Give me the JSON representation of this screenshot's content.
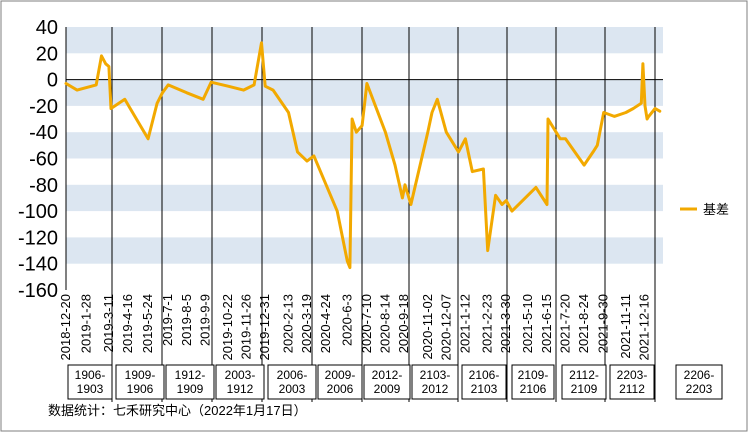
{
  "chart_data": {
    "type": "line",
    "title": "",
    "xlabel": "",
    "ylabel": "",
    "ylim": [
      -160,
      40
    ],
    "yticks": [
      40,
      20,
      0,
      -20,
      -40,
      -60,
      -80,
      -100,
      -120,
      -140,
      -160
    ],
    "y_unit": "",
    "grid": "alternating horizontal bands",
    "legend_placement": "right",
    "colors": {
      "series": "#F2A900",
      "band": "#DCE6F1",
      "frame": "#000000"
    },
    "x_ticks": [
      "2018-12-20",
      "2019-1-28",
      "2019-3-11",
      "2019-4-16",
      "2019-5-24",
      "2019-7-1",
      "2019-8-5",
      "2019-9-9",
      "2019-10-22",
      "2019-11-26",
      "2019-12-31",
      "2020-2-13",
      "2020-3-19",
      "2020-4-24",
      "2020-6-3",
      "2020-7-10",
      "2020-8-14",
      "2020-9-18",
      "2020-11-02",
      "2020-12-07",
      "2021-1-12",
      "2021-2-23",
      "2021-3-30",
      "2021-5-10",
      "2021-6-15",
      "2021-7-20",
      "2021-8-24",
      "2021-9-30",
      "2021-11-11",
      "2021-12-16"
    ],
    "contract_labels": [
      "1906-\n1903",
      "1909-\n1906",
      "1912-\n1909",
      "2003-\n1912",
      "2006-\n2003",
      "2009-\n2006",
      "2012-\n2009",
      "2103-\n2012",
      "2106-\n2103",
      "2109-\n2106",
      "2112-\n2109",
      "2203-\n2112",
      "2206-\n2203"
    ],
    "series": [
      {
        "name": "基差",
        "x": [
          "2018-12-20",
          "2019-1-10",
          "2019-2-15",
          "2019-2-25",
          "2019-3-05",
          "2019-3-11",
          "2019-3-15",
          "2019-4-10",
          "2019-5-24",
          "2019-6-10",
          "2019-6-20",
          "2019-7-01",
          "2019-8-05",
          "2019-9-05",
          "2019-9-20",
          "2019-10-22",
          "2019-11-20",
          "2019-12-10",
          "2019-12-24",
          "2019-12-31",
          "2020-1-15",
          "2020-2-13",
          "2020-3-01",
          "2020-3-19",
          "2020-4-01",
          "2020-4-24",
          "2020-5-15",
          "2020-6-03",
          "2020-6-08",
          "2020-6-12",
          "2020-6-20",
          "2020-7-01",
          "2020-7-10",
          "2020-8-14",
          "2020-9-01",
          "2020-9-15",
          "2020-9-20",
          "2020-10-01",
          "2020-11-02",
          "2020-11-10",
          "2020-11-20",
          "2020-12-07",
          "2020-12-30",
          "2021-1-12",
          "2021-1-25",
          "2021-2-15",
          "2021-2-23",
          "2021-3-10",
          "2021-3-22",
          "2021-3-30",
          "2021-4-10",
          "2021-5-10",
          "2021-5-25",
          "2021-6-15",
          "2021-6-17",
          "2021-7-10",
          "2021-7-20",
          "2021-8-24",
          "2021-9-10",
          "2021-9-18",
          "2021-9-30",
          "2021-10-20",
          "2021-11-11",
          "2021-11-25",
          "2021-12-10",
          "2021-12-13",
          "2021-12-17",
          "2021-12-21",
          "2021-12-24",
          "2022-1-05",
          "2022-1-14"
        ],
        "values": [
          -3,
          -8,
          -4,
          18,
          12,
          10,
          -22,
          -15,
          -45,
          -18,
          -10,
          -4,
          -10,
          -15,
          -2,
          -5,
          -8,
          -4,
          28,
          -5,
          -8,
          -25,
          -55,
          -62,
          -58,
          -80,
          -100,
          -138,
          -143,
          -30,
          -40,
          -35,
          -3,
          -40,
          -65,
          -90,
          -80,
          -95,
          -40,
          -25,
          -15,
          -40,
          -55,
          -45,
          -70,
          -68,
          -130,
          -88,
          -95,
          -92,
          -100,
          -88,
          -82,
          -95,
          -30,
          -45,
          -45,
          -65,
          -55,
          -50,
          -25,
          -28,
          -25,
          -22,
          -18,
          12,
          -20,
          -30,
          -28,
          -22,
          -24
        ]
      }
    ]
  },
  "footer": {
    "source": "数据统计：七禾研究中心（2022年1月17日）"
  }
}
